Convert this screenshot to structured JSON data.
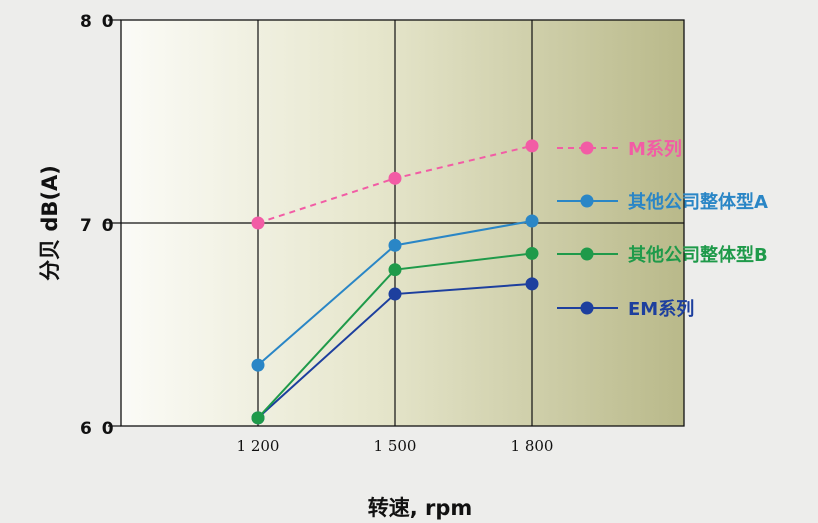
{
  "chart_data": {
    "type": "line",
    "xlabel": "转速, rpm",
    "ylabel": "分贝  dB(A)",
    "x_categories": [
      "1 200",
      "1 500",
      "1 800"
    ],
    "y_ticks": [
      "6 0",
      "7 0",
      "8 0"
    ],
    "y_tick_values": [
      60,
      70,
      80
    ],
    "ylim": [
      60,
      80
    ],
    "grid": true,
    "legend_position": "right",
    "series": [
      {
        "name": "M系列",
        "values": [
          70.0,
          72.2,
          73.8
        ],
        "color": "#f25ca5",
        "dashed": true
      },
      {
        "name": "其他公司整体型A",
        "values": [
          63.0,
          68.9,
          70.1
        ],
        "color": "#2a86c6",
        "dashed": false
      },
      {
        "name": "其他公司整体型B",
        "values": [
          60.4,
          67.7,
          68.5
        ],
        "color": "#1f9a4a",
        "dashed": false
      },
      {
        "name": "EM系列",
        "values": [
          60.4,
          66.5,
          67.0
        ],
        "color": "#1d3f9e",
        "dashed": false
      }
    ]
  }
}
